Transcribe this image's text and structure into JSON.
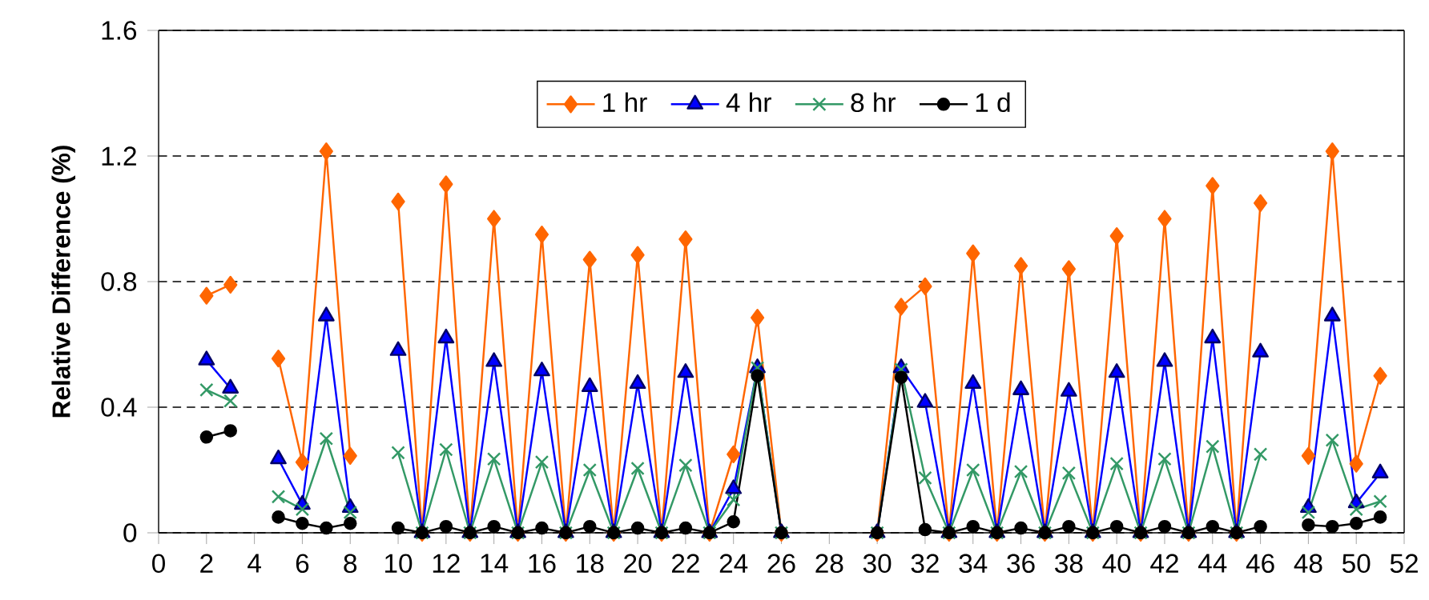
{
  "chart_data": {
    "type": "line",
    "ylabel": "Relative Difference (%)",
    "x": [
      2,
      3,
      4,
      5,
      6,
      7,
      8,
      9,
      10,
      11,
      12,
      13,
      14,
      15,
      16,
      17,
      18,
      19,
      20,
      21,
      22,
      23,
      24,
      25,
      26,
      27,
      28,
      29,
      30,
      31,
      32,
      33,
      34,
      35,
      36,
      37,
      38,
      39,
      40,
      41,
      42,
      43,
      44,
      45,
      46,
      47,
      48,
      49,
      50,
      51
    ],
    "series": [
      {
        "name": "1 hr",
        "color": "#ff6600",
        "marker": "diamond",
        "values": [
          0.755,
          0.79,
          null,
          0.555,
          0.225,
          1.215,
          0.245,
          null,
          1.055,
          0,
          1.11,
          0,
          1.0,
          0,
          0.95,
          0,
          0.87,
          0,
          0.885,
          0,
          0.935,
          0,
          0.25,
          0.685,
          0,
          null,
          null,
          null,
          0,
          0.72,
          0.785,
          0,
          0.89,
          0,
          0.85,
          0,
          0.84,
          0,
          0.945,
          0,
          1.0,
          0,
          1.105,
          0,
          1.05,
          null,
          0.245,
          1.215,
          0.22,
          0.5
        ]
      },
      {
        "name": "4 hr",
        "color": "#0000ff",
        "marker": "triangle",
        "values": [
          0.55,
          0.46,
          null,
          0.235,
          0.09,
          0.69,
          0.08,
          null,
          0.58,
          0,
          0.62,
          0,
          0.545,
          0,
          0.515,
          0,
          0.465,
          0,
          0.475,
          0,
          0.51,
          0,
          0.14,
          0.525,
          0,
          null,
          null,
          null,
          0,
          0.525,
          0.415,
          0,
          0.475,
          0,
          0.455,
          0,
          0.45,
          0,
          0.51,
          0,
          0.545,
          0,
          0.62,
          0,
          0.575,
          null,
          0.08,
          0.69,
          0.095,
          0.19
        ]
      },
      {
        "name": "8 hr",
        "color": "#339966",
        "marker": "cross",
        "values": [
          0.455,
          0.42,
          null,
          0.115,
          0.075,
          0.3,
          0.065,
          null,
          0.255,
          0,
          0.265,
          0,
          0.235,
          0,
          0.225,
          0,
          0.2,
          0,
          0.205,
          0,
          0.215,
          0,
          0.105,
          0.525,
          0,
          null,
          null,
          null,
          0,
          0.52,
          0.175,
          0,
          0.2,
          0,
          0.195,
          0,
          0.19,
          0,
          0.22,
          0,
          0.235,
          0,
          0.275,
          0,
          0.25,
          null,
          0.065,
          0.295,
          0.075,
          0.1
        ]
      },
      {
        "name": "1 d",
        "color": "#000000",
        "marker": "circle",
        "values": [
          0.305,
          0.325,
          null,
          0.05,
          0.03,
          0.015,
          0.03,
          null,
          0.015,
          0,
          0.02,
          0,
          0.02,
          0,
          0.015,
          0,
          0.02,
          0,
          0.015,
          0,
          0.015,
          0,
          0.035,
          0.5,
          0,
          null,
          null,
          null,
          0,
          0.495,
          0.01,
          0,
          0.02,
          0,
          0.015,
          0,
          0.02,
          0,
          0.02,
          0,
          0.02,
          0,
          0.02,
          0,
          0.02,
          null,
          0.025,
          0.02,
          0.03,
          0.05
        ]
      }
    ],
    "xlim": [
      0,
      52
    ],
    "xticks": [
      0,
      2,
      4,
      6,
      8,
      10,
      12,
      14,
      16,
      18,
      20,
      22,
      24,
      26,
      28,
      30,
      32,
      34,
      36,
      38,
      40,
      42,
      44,
      46,
      48,
      50,
      52
    ],
    "ylim": [
      0,
      1.6
    ],
    "yticks": [
      0,
      0.4,
      0.8,
      1.2,
      1.6
    ],
    "grid": "y",
    "legend": "top",
    "line_style": "solid"
  }
}
